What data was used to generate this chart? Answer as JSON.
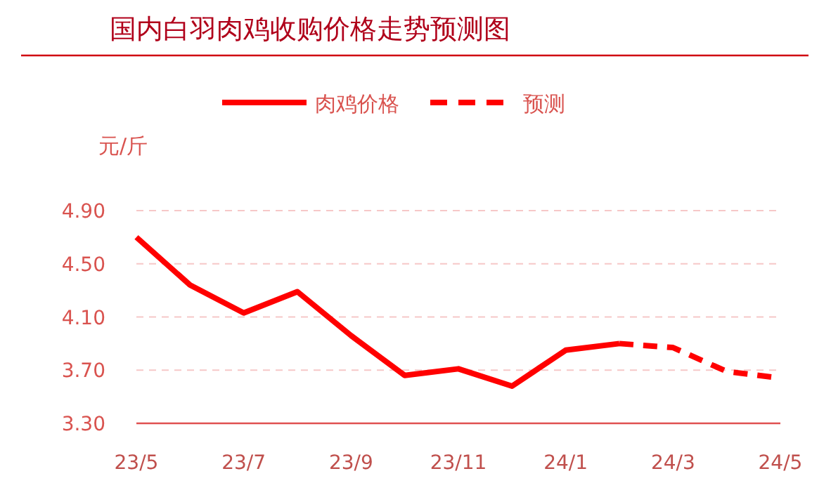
{
  "chart_data": {
    "type": "line",
    "title": "国内白羽肉鸡收购价格走势预测图",
    "ylabel": "元/斤",
    "categories": [
      "23/5",
      null,
      "23/7",
      null,
      "23/9",
      null,
      "23/11",
      null,
      "24/1",
      null,
      "24/3",
      null,
      "24/5"
    ],
    "series": [
      {
        "name": "肉鸡价格",
        "color": "#ff0000",
        "line_style": "solid",
        "values": [
          4.7,
          4.34,
          4.13,
          4.29,
          3.96,
          3.66,
          3.71,
          3.58,
          3.85,
          3.9,
          null,
          null,
          null
        ]
      },
      {
        "name": "预测",
        "color": "#ff0000",
        "line_style": "dashed",
        "values": [
          null,
          null,
          null,
          null,
          null,
          null,
          null,
          null,
          null,
          3.9,
          3.87,
          3.69,
          3.64
        ]
      }
    ],
    "ylim": [
      3.3,
      4.9
    ],
    "yticks": [
      {
        "value": 3.3,
        "label": "3.30"
      },
      {
        "value": 3.7,
        "label": "3.70"
      },
      {
        "value": 4.1,
        "label": "4.10"
      },
      {
        "value": 4.5,
        "label": "4.50"
      },
      {
        "value": 4.9,
        "label": "4.90"
      }
    ],
    "grid": "y",
    "legend": "top"
  }
}
